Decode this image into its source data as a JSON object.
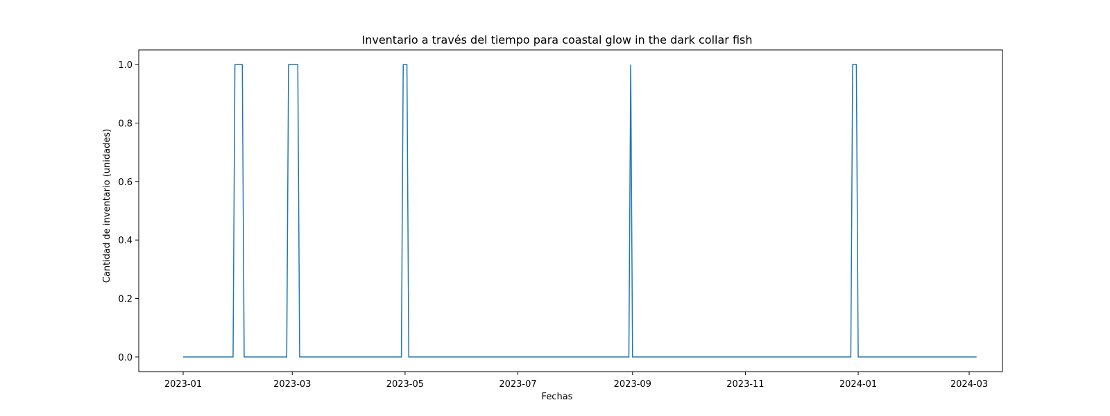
{
  "chart_data": {
    "type": "line",
    "title": "Inventario a través del tiempo para coastal glow in the dark collar fish",
    "xlabel": "Fechas",
    "ylabel": "Cantidad de inventario (unidades)",
    "grid": false,
    "legend": "none",
    "xlim": [
      "2022-12-08",
      "2024-03-19"
    ],
    "ylim": [
      -0.05,
      1.05
    ],
    "x_ticks": [
      {
        "value": "2023-01-01",
        "label": "2023-01"
      },
      {
        "value": "2023-03-01",
        "label": "2023-03"
      },
      {
        "value": "2023-05-01",
        "label": "2023-05"
      },
      {
        "value": "2023-07-01",
        "label": "2023-07"
      },
      {
        "value": "2023-09-01",
        "label": "2023-09"
      },
      {
        "value": "2023-11-01",
        "label": "2023-11"
      },
      {
        "value": "2024-01-01",
        "label": "2024-01"
      },
      {
        "value": "2024-03-01",
        "label": "2024-03"
      }
    ],
    "y_ticks": [
      {
        "value": 0.0,
        "label": "0.0"
      },
      {
        "value": 0.2,
        "label": "0.2"
      },
      {
        "value": 0.4,
        "label": "0.4"
      },
      {
        "value": 0.6,
        "label": "0.6"
      },
      {
        "value": 0.8,
        "label": "0.8"
      },
      {
        "value": 1.0,
        "label": "1.0"
      }
    ],
    "series": [
      {
        "color": "#1f77b4",
        "x": [
          "2023-01-01",
          "2023-01-28",
          "2023-01-29",
          "2023-02-02",
          "2023-02-03",
          "2023-02-26",
          "2023-02-27",
          "2023-03-04",
          "2023-03-05",
          "2023-04-29",
          "2023-04-30",
          "2023-05-02",
          "2023-05-03",
          "2023-08-30",
          "2023-08-31",
          "2023-09-01",
          "2023-12-28",
          "2023-12-29",
          "2023-12-31",
          "2024-01-01",
          "2024-03-05"
        ],
        "y": [
          0,
          0,
          1,
          1,
          0,
          0,
          1,
          1,
          0,
          0,
          1,
          1,
          0,
          0,
          1,
          0,
          0,
          1,
          1,
          0,
          0
        ]
      }
    ]
  }
}
